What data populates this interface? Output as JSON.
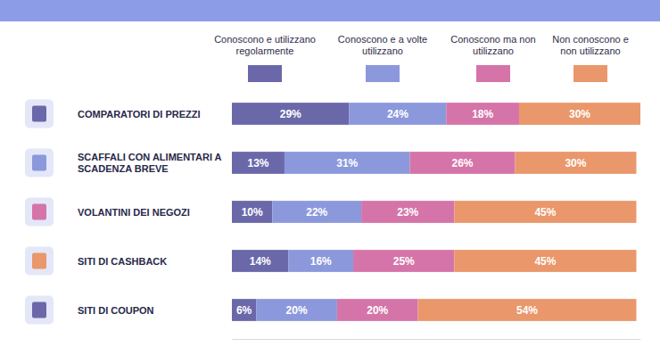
{
  "chart_data": {
    "type": "bar",
    "orientation": "horizontal",
    "stacked": true,
    "data_labels": true,
    "tick_labels": false,
    "legend": "top",
    "categories": [
      "COMPARATORI DI PREZZI",
      "SCAFFALI CON ALIMENTARI A SCADENZA BREVE",
      "VOLANTINI DEI NEGOZI",
      "SITI DI CASHBACK",
      "SITI DI COUPON"
    ],
    "xlim": [
      0,
      101
    ],
    "xticks": [],
    "series": [
      {
        "name": "Conoscono e utilizzano regolarmente",
        "color": "#6a68a9",
        "values": [
          29,
          13,
          10,
          14,
          6
        ],
        "value_labels": [
          "29%",
          "13%",
          "10%",
          "14%",
          "6%"
        ]
      },
      {
        "name": "Conoscono e a volte utilizzano",
        "color": "#8b98dc",
        "values": [
          24,
          31,
          22,
          16,
          20
        ],
        "value_labels": [
          "24%",
          "31%",
          "22%",
          "16%",
          "20%"
        ]
      },
      {
        "name": "Conoscono ma non utilizzano",
        "color": "#d574a9",
        "values": [
          18,
          26,
          23,
          25,
          20
        ],
        "value_labels": [
          "18%",
          "26%",
          "23%",
          "25%",
          "20%"
        ]
      },
      {
        "name": "Non conoscono e non utilizzano",
        "color": "#e9976b",
        "values": [
          30,
          30,
          45,
          45,
          54
        ],
        "value_labels": [
          "30%",
          "30%",
          "45%",
          "45%",
          "54%"
        ]
      }
    ]
  }
}
